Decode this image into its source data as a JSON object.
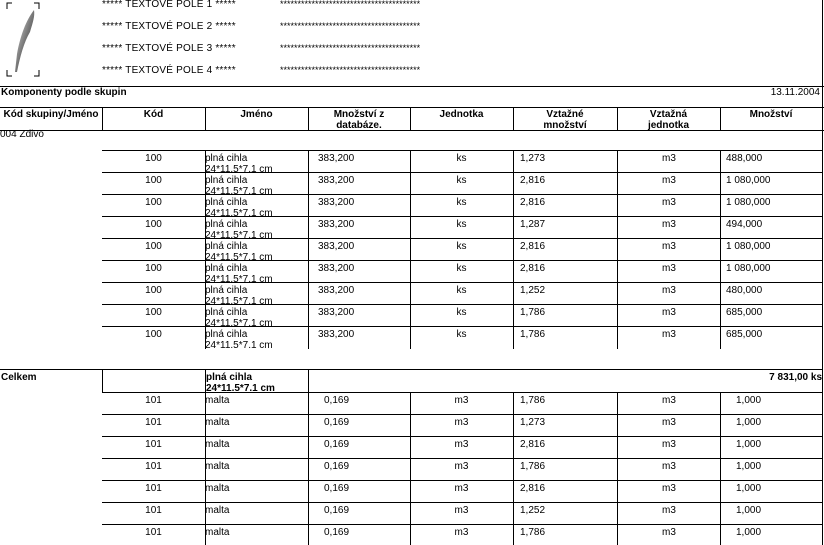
{
  "header": {
    "text_fields": [
      "***** TEXTOVE POLE 1 *****",
      "***** TEXTOVÉ POLE 2 *****",
      "***** TEXTOVÉ POLE 3 *****",
      "***** TEXTOVÉ POLE 4 *****"
    ],
    "placeholders": [
      "****************************************",
      "****************************************",
      "****************************************",
      "****************************************"
    ],
    "logo_icon": "feather-quill-icon"
  },
  "report": {
    "title": "Komponenty podle skupin",
    "date": "13.11.2004"
  },
  "columns": [
    "Kód skupiny/Jméno",
    "Kód",
    "Jméno",
    "Množství z databáze.",
    "Jednotka",
    "Vztažné množství",
    "Vztažná jednotka",
    "Množství"
  ],
  "group": {
    "label": "004 Zdivo"
  },
  "rows_a": [
    {
      "kod": "100",
      "jmeno": "plná cihla",
      "jmeno2": "24*11.5*7.1 cm",
      "mnoz": "383,200",
      "jed": "ks",
      "vmnoz": "1,273",
      "vjed": "m3",
      "total": "488,000"
    },
    {
      "kod": "100",
      "jmeno": "plná cihla",
      "jmeno2": "24*11.5*7.1 cm",
      "mnoz": "383,200",
      "jed": "ks",
      "vmnoz": "2,816",
      "vjed": "m3",
      "total": "1 080,000"
    },
    {
      "kod": "100",
      "jmeno": "plná cihla",
      "jmeno2": "24*11.5*7.1 cm",
      "mnoz": "383,200",
      "jed": "ks",
      "vmnoz": "2,816",
      "vjed": "m3",
      "total": "1 080,000"
    },
    {
      "kod": "100",
      "jmeno": "plná cihla",
      "jmeno2": "24*11.5*7.1 cm",
      "mnoz": "383,200",
      "jed": "ks",
      "vmnoz": "1,287",
      "vjed": "m3",
      "total": "494,000"
    },
    {
      "kod": "100",
      "jmeno": "plná cihla",
      "jmeno2": "24*11.5*7.1 cm",
      "mnoz": "383,200",
      "jed": "ks",
      "vmnoz": "2,816",
      "vjed": "m3",
      "total": "1 080,000"
    },
    {
      "kod": "100",
      "jmeno": "plná cihla",
      "jmeno2": "24*11.5*7.1 cm",
      "mnoz": "383,200",
      "jed": "ks",
      "vmnoz": "2,816",
      "vjed": "m3",
      "total": "1 080,000"
    },
    {
      "kod": "100",
      "jmeno": "plná cihla",
      "jmeno2": "24*11.5*7.1 cm",
      "mnoz": "383,200",
      "jed": "ks",
      "vmnoz": "1,252",
      "vjed": "m3",
      "total": "480,000"
    },
    {
      "kod": "100",
      "jmeno": "plná cihla",
      "jmeno2": "24*11.5*7.1 cm",
      "mnoz": "383,200",
      "jed": "ks",
      "vmnoz": "1,786",
      "vjed": "m3",
      "total": "685,000"
    },
    {
      "kod": "100",
      "jmeno": "plná cihla",
      "jmeno2": "24*11.5*7.1 cm",
      "mnoz": "383,200",
      "jed": "ks",
      "vmnoz": "1,786",
      "vjed": "m3",
      "total": "685,000"
    },
    {
      "kod": "100",
      "jmeno": "plná cihla",
      "jmeno2": "24*11.5*7.1 cm",
      "mnoz": "383,200",
      "jed": "ks",
      "vmnoz": "1,786",
      "vjed": "m3",
      "total": "685,000"
    }
  ],
  "summary": {
    "label": "Celkem",
    "name": "plná cihla",
    "name2": "24*11.5*7.1 cm",
    "total": "7 831,00 ks"
  },
  "rows_b": [
    {
      "kod": "101",
      "jmeno": "malta",
      "jmeno2": "",
      "mnoz": "0,169",
      "jed": "m3",
      "vmnoz": "1,786",
      "vjed": "m3",
      "total": "1,000"
    },
    {
      "kod": "101",
      "jmeno": "malta",
      "jmeno2": "",
      "mnoz": "0,169",
      "jed": "m3",
      "vmnoz": "1,273",
      "vjed": "m3",
      "total": "1,000"
    },
    {
      "kod": "101",
      "jmeno": "malta",
      "jmeno2": "",
      "mnoz": "0,169",
      "jed": "m3",
      "vmnoz": "2,816",
      "vjed": "m3",
      "total": "1,000"
    },
    {
      "kod": "101",
      "jmeno": "malta",
      "jmeno2": "",
      "mnoz": "0,169",
      "jed": "m3",
      "vmnoz": "1,786",
      "vjed": "m3",
      "total": "1,000"
    },
    {
      "kod": "101",
      "jmeno": "malta",
      "jmeno2": "",
      "mnoz": "0,169",
      "jed": "m3",
      "vmnoz": "2,816",
      "vjed": "m3",
      "total": "1,000"
    },
    {
      "kod": "101",
      "jmeno": "malta",
      "jmeno2": "",
      "mnoz": "0,169",
      "jed": "m3",
      "vmnoz": "1,252",
      "vjed": "m3",
      "total": "1,000"
    },
    {
      "kod": "101",
      "jmeno": "malta",
      "jmeno2": "",
      "mnoz": "0,169",
      "jed": "m3",
      "vmnoz": "1,786",
      "vjed": "m3",
      "total": "1,000"
    }
  ]
}
